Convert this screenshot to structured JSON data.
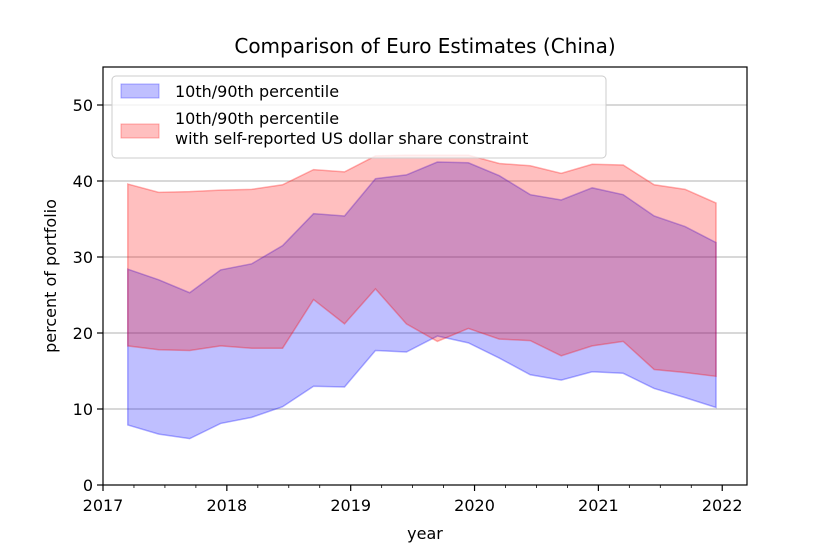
{
  "chart_data": {
    "type": "area",
    "title": "Comparison of Euro Estimates (China)",
    "xlabel": "year",
    "ylabel": "percent of portfolio",
    "xlim": [
      2017.0,
      2022.2
    ],
    "ylim": [
      0,
      55
    ],
    "xticks": [
      2017,
      2018,
      2019,
      2020,
      2021,
      2022
    ],
    "xtick_labels": [
      "2017",
      "2018",
      "2019",
      "2020",
      "2021",
      "2022"
    ],
    "yticks": [
      0,
      10,
      20,
      30,
      40,
      50
    ],
    "ytick_labels": [
      "0",
      "10",
      "20",
      "30",
      "40",
      "50"
    ],
    "grid": "horizontal",
    "legend_position": "top-left",
    "x": [
      2017.2,
      2017.45,
      2017.7,
      2017.95,
      2018.2,
      2018.45,
      2018.7,
      2018.95,
      2019.2,
      2019.45,
      2019.7,
      2019.95,
      2020.2,
      2020.45,
      2020.7,
      2020.95,
      2021.2,
      2021.45,
      2021.7,
      2021.95
    ],
    "series": [
      {
        "name": "10th/90th percentile",
        "color": "#0000ff",
        "lower": [
          7.9,
          6.7,
          6.1,
          8.1,
          8.9,
          10.3,
          13.0,
          12.9,
          17.7,
          17.5,
          19.6,
          18.7,
          16.7,
          14.5,
          13.8,
          14.9,
          14.7,
          12.7,
          11.5,
          10.2
        ],
        "upper": [
          28.4,
          27.0,
          25.3,
          28.3,
          29.1,
          31.5,
          35.7,
          35.4,
          40.3,
          40.8,
          42.5,
          42.4,
          40.7,
          38.2,
          37.5,
          39.1,
          38.2,
          35.4,
          34.0,
          31.9
        ]
      },
      {
        "name": "10th/90th percentile\nwith self-reported US dollar share constraint",
        "color": "#ff0000",
        "lower": [
          18.3,
          17.8,
          17.7,
          18.3,
          18.0,
          18.0,
          24.4,
          21.2,
          25.8,
          21.2,
          18.9,
          20.6,
          19.2,
          19.0,
          17.0,
          18.3,
          18.9,
          15.2,
          14.8,
          14.3
        ],
        "upper": [
          39.6,
          38.5,
          38.6,
          38.8,
          38.9,
          39.5,
          41.5,
          41.2,
          43.3,
          43.4,
          43.4,
          43.4,
          42.3,
          42.0,
          41.0,
          42.2,
          42.1,
          39.5,
          38.9,
          37.1
        ]
      }
    ]
  }
}
